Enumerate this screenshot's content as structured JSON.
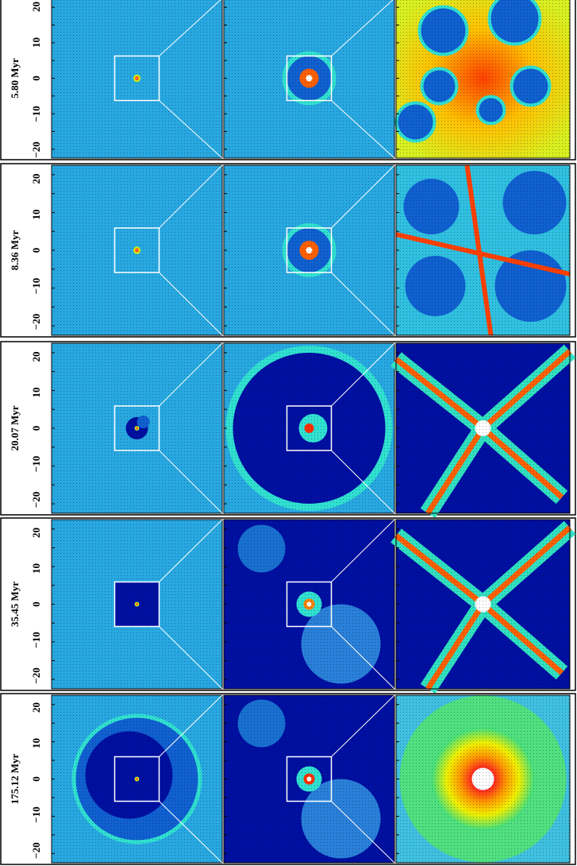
{
  "axis_ticks": [
    "20",
    "10",
    "0",
    "−10",
    "−20"
  ],
  "rows": [
    {
      "label": "5.80 Myr"
    },
    {
      "label": "8.36 Myr"
    },
    {
      "label": "20.07 Myr"
    },
    {
      "label": "35.45 Myr"
    },
    {
      "label": "175.12 Myr"
    }
  ]
}
